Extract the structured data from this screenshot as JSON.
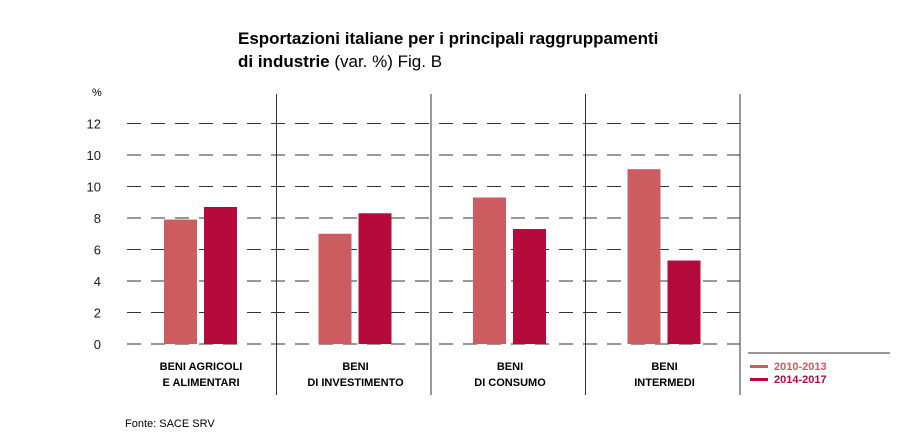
{
  "chart_data": {
    "type": "bar",
    "title_line1": "Esportazioni italiane per i principali raggruppamenti",
    "title_line2_bold": "di industrie",
    "title_line2_rest": " (var. %) Fig. B",
    "ylabel": "%",
    "ylim": [
      0,
      12
    ],
    "yticks": [
      "0",
      "2",
      "4",
      "6",
      "8",
      "10",
      "10",
      "12"
    ],
    "grid": "dashed",
    "legend_position": "bottom-right",
    "categories": [
      {
        "line1": "BENI AGRICOLI",
        "line2": "E ALIMENTARI"
      },
      {
        "line1": "BENI",
        "line2": "DI INVESTIMENTO"
      },
      {
        "line1": "BENI",
        "line2": "DI CONSUMO"
      },
      {
        "line1": "BENI",
        "line2": "INTERMEDI"
      }
    ],
    "series": [
      {
        "name": "2010-2013",
        "color": "#cd5c61",
        "values": [
          7.9,
          7.0,
          9.3,
          11.1
        ]
      },
      {
        "name": "2014-2017",
        "color": "#b40a3c",
        "values": [
          8.7,
          8.3,
          7.3,
          5.3
        ]
      }
    ]
  },
  "source": "Fonte: SACE SRV"
}
